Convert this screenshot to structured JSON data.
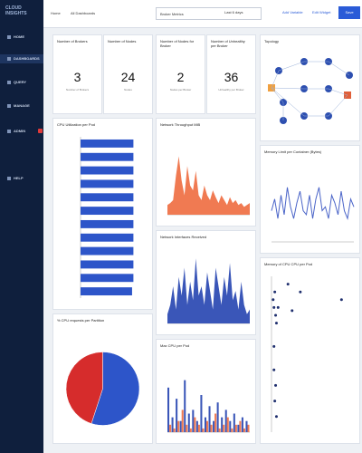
{
  "sidebar": {
    "logo": "CLOUD INSIGHTS",
    "items": [
      "HOME",
      "DASHBOARDS",
      "QUERY",
      "MANAGE",
      "ADMIN",
      "HELP"
    ]
  },
  "topbar": {
    "crumbs": [
      "Home",
      "All Dashboards",
      "Broker Metrics"
    ],
    "range": "Last 6 days",
    "add": "Add Variable",
    "edit": "Edit Widget",
    "save": "Save"
  },
  "kpis": [
    {
      "title": "Number of Brokers",
      "value": "3",
      "sub": "Number of Brokers"
    },
    {
      "title": "Number of Nodes",
      "value": "24",
      "sub": "Nodes"
    },
    {
      "title": "Number of Nodes for Broker",
      "value": "2",
      "sub": "Nodes per Broker"
    },
    {
      "title": "Number of Unhealthy per Broker",
      "value": "36",
      "sub": "Unhealthy per Broker"
    }
  ],
  "widgets": [
    {
      "type": "hbar",
      "title": "CPU Utilization per Pod",
      "color": "#2d55c9",
      "xlim": [
        0,
        100
      ],
      "values": [
        80,
        80,
        80,
        80,
        80,
        80,
        80,
        80,
        80,
        80,
        80,
        78
      ]
    },
    {
      "type": "area",
      "title": "Network Throughput MiB",
      "color": "#f07a52",
      "ylim": [
        0,
        80
      ],
      "values": [
        10,
        12,
        15,
        40,
        60,
        35,
        20,
        50,
        30,
        25,
        45,
        20,
        15,
        30,
        20,
        15,
        25,
        18,
        12,
        20,
        15,
        10,
        18,
        12,
        15,
        10,
        12,
        8,
        10,
        12
      ]
    },
    {
      "type": "diagram",
      "title": "Topology"
    },
    {
      "type": "line",
      "title": "Memory Limit per Container (Bytes)",
      "color": "#4a64c8",
      "ylim": [
        0,
        100
      ],
      "values": [
        40,
        55,
        30,
        60,
        35,
        70,
        45,
        30,
        50,
        65,
        40,
        35,
        60,
        30,
        55,
        70,
        40,
        45,
        30,
        60,
        50,
        35,
        65,
        40,
        30,
        55,
        45
      ]
    },
    {
      "type": "area",
      "title": "Network Interfaces Received",
      "color": "#3a56b8",
      "ylim": [
        0,
        80
      ],
      "values": [
        10,
        20,
        40,
        15,
        50,
        30,
        60,
        20,
        45,
        25,
        70,
        30,
        40,
        20,
        55,
        35,
        15,
        60,
        40,
        20,
        50,
        30,
        65,
        25,
        35,
        15,
        45,
        20,
        10,
        15
      ]
    },
    {
      "type": "scatter",
      "title": "Memory of CPU CPU per Pod",
      "color": "#1f2f6e",
      "xlim": [
        0,
        100
      ],
      "ylim": [
        0,
        100
      ],
      "x": [
        2,
        3,
        4,
        5,
        6,
        8,
        20,
        25,
        35,
        85,
        3,
        5,
        4,
        6,
        3
      ],
      "y": [
        85,
        80,
        90,
        75,
        70,
        80,
        95,
        78,
        90,
        85,
        40,
        30,
        20,
        10,
        55
      ]
    },
    {
      "type": "pie",
      "title": "% CPU requests per Partition",
      "values": [
        55,
        45
      ],
      "colors": [
        "#2d55c9",
        "#d62c2c"
      ]
    },
    {
      "type": "bars",
      "title": "Max CPU per Pod",
      "ylim": [
        0,
        100
      ],
      "series": [
        {
          "color": "#3a56b8",
          "values": [
            60,
            20,
            45,
            15,
            70,
            25,
            30,
            15,
            50,
            20,
            35,
            15,
            40,
            20,
            30,
            15,
            25,
            10,
            20,
            15
          ]
        },
        {
          "color": "#f07a52",
          "values": [
            10,
            5,
            15,
            30,
            10,
            5,
            20,
            10,
            5,
            15,
            10,
            25,
            5,
            10,
            20,
            5,
            10,
            15,
            5,
            10
          ]
        }
      ]
    }
  ]
}
